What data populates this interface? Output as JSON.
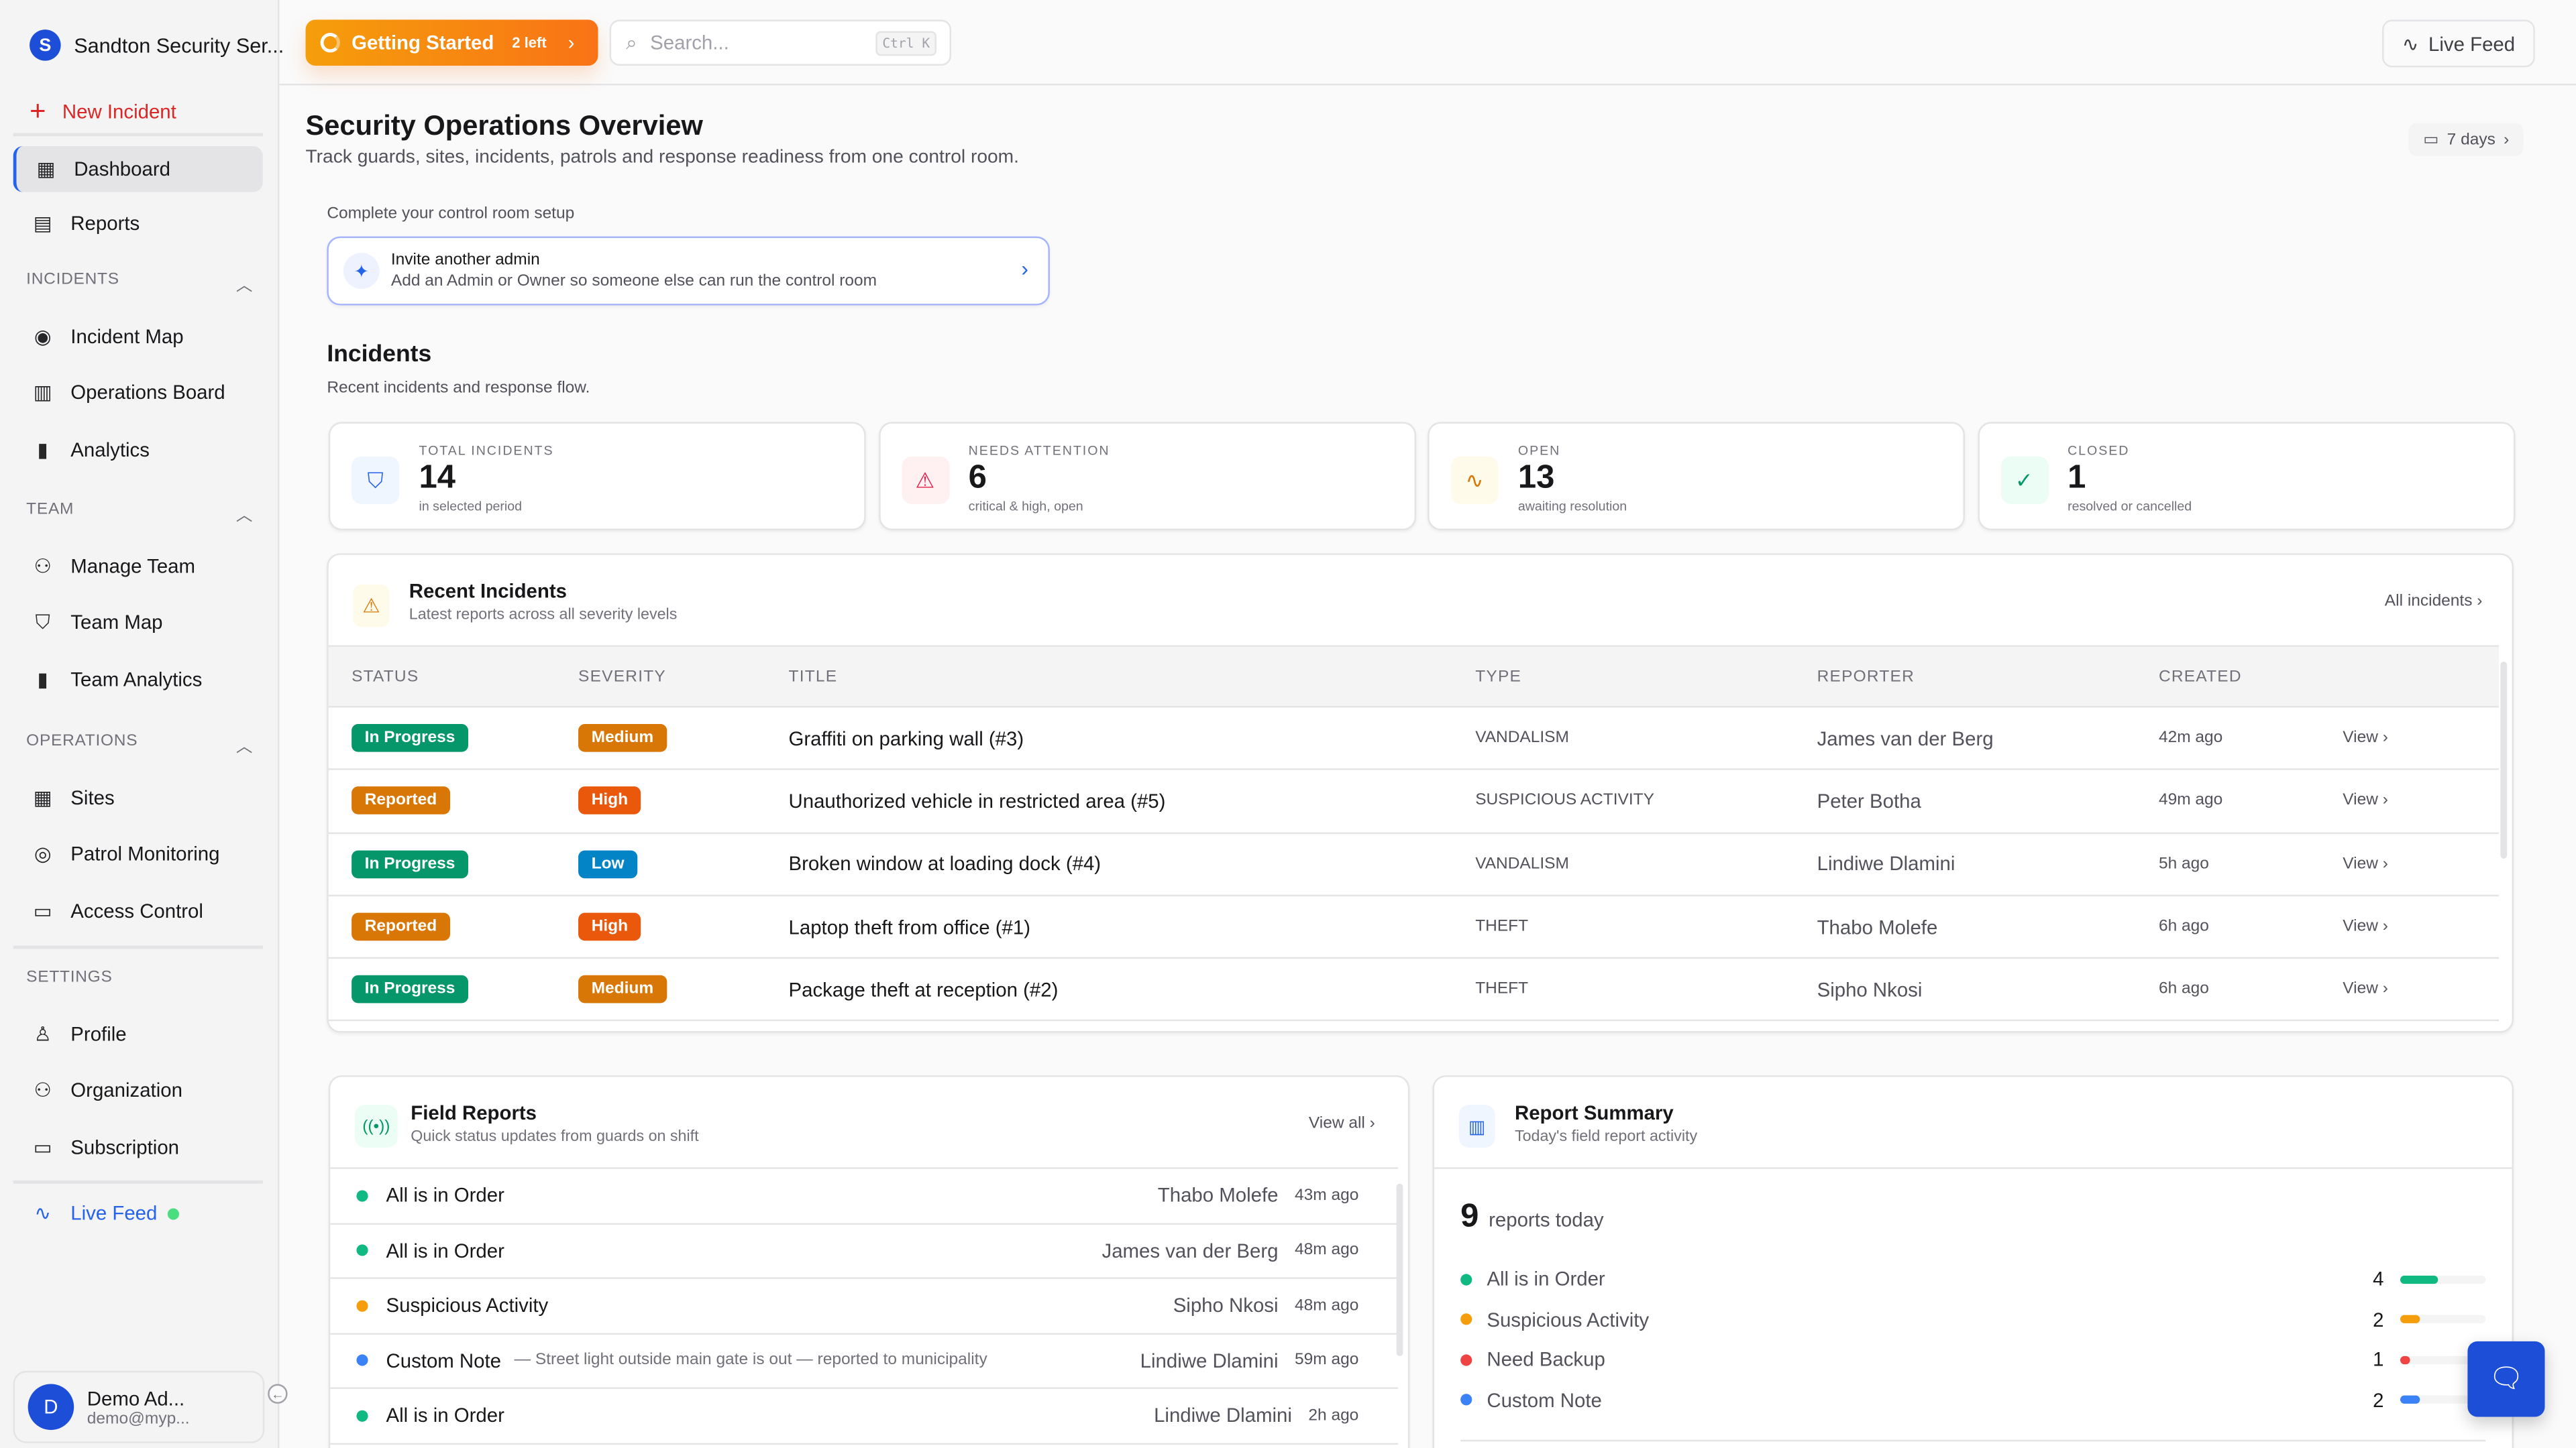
{
  "sidebar": {
    "org": "Sandton Security Ser...",
    "org_initial": "S",
    "new_incident": "New Incident",
    "top": [
      {
        "label": "Dashboard",
        "icon": "grid-icon",
        "active": true
      },
      {
        "label": "Reports",
        "icon": "file-chart-icon"
      }
    ],
    "sections": [
      {
        "title": "INCIDENTS",
        "items": [
          {
            "label": "Incident Map",
            "icon": "map-pin-icon"
          },
          {
            "label": "Operations Board",
            "icon": "clipboard-icon"
          },
          {
            "label": "Analytics",
            "icon": "bar-chart-icon"
          }
        ]
      },
      {
        "title": "TEAM",
        "items": [
          {
            "label": "Manage Team",
            "icon": "users-icon"
          },
          {
            "label": "Team Map",
            "icon": "shield-icon"
          },
          {
            "label": "Team Analytics",
            "icon": "bar-chart-icon"
          }
        ]
      },
      {
        "title": "OPERATIONS",
        "items": [
          {
            "label": "Sites",
            "icon": "building-icon"
          },
          {
            "label": "Patrol Monitoring",
            "icon": "eye-icon"
          },
          {
            "label": "Access Control",
            "icon": "id-card-icon"
          }
        ]
      },
      {
        "title": "SETTINGS",
        "items": [
          {
            "label": "Profile",
            "icon": "user-icon"
          },
          {
            "label": "Organization",
            "icon": "users-icon"
          },
          {
            "label": "Subscription",
            "icon": "credit-card-icon"
          }
        ]
      }
    ],
    "live_feed": "Live Feed",
    "user": {
      "initial": "D",
      "name": "Demo Ad...",
      "email": "demo@myp..."
    }
  },
  "topbar": {
    "getting_started": "Getting Started",
    "left": "2 left",
    "search_placeholder": "Search...",
    "shortcut": "Ctrl K",
    "live_feed": "Live Feed"
  },
  "page": {
    "title": "Security Operations Overview",
    "subtitle": "Track guards, sites, incidents, patrols and response readiness from one control room.",
    "range": "7 days"
  },
  "setup": {
    "heading": "Complete your control room setup",
    "title": "Invite another admin",
    "desc": "Add an Admin or Owner so someone else can run the control room"
  },
  "incidents": {
    "title": "Incidents",
    "subtitle": "Recent incidents and response flow."
  },
  "stats": [
    {
      "label": "TOTAL INCIDENTS",
      "value": "14",
      "sub": "in selected period",
      "icon": "shield-icon",
      "color": "#2563eb",
      "bg": "#eff6ff"
    },
    {
      "label": "NEEDS ATTENTION",
      "value": "6",
      "sub": "critical & high, open",
      "icon": "alert-triangle-icon",
      "color": "#e11d48",
      "bg": "#fff1f2"
    },
    {
      "label": "OPEN",
      "value": "13",
      "sub": "awaiting resolution",
      "icon": "activity-icon",
      "color": "#d97706",
      "bg": "#fffbeb"
    },
    {
      "label": "CLOSED",
      "value": "1",
      "sub": "resolved or cancelled",
      "icon": "check-circle-icon",
      "color": "#059669",
      "bg": "#ecfdf5"
    }
  ],
  "recent": {
    "title": "Recent Incidents",
    "subtitle": "Latest reports across all severity levels",
    "all_link": "All incidents",
    "columns": [
      "STATUS",
      "SEVERITY",
      "TITLE",
      "TYPE",
      "REPORTER",
      "CREATED"
    ],
    "rows": [
      {
        "status": "In Progress",
        "status_color": "#059669",
        "severity": "Medium",
        "severity_color": "#d97706",
        "title": "Graffiti on parking wall (#3)",
        "type": "VANDALISM",
        "reporter": "James van der Berg",
        "created": "42m ago",
        "action": "View"
      },
      {
        "status": "Reported",
        "status_color": "#d97706",
        "severity": "High",
        "severity_color": "#ea580c",
        "title": "Unauthorized vehicle in restricted area (#5)",
        "type": "SUSPICIOUS ACTIVITY",
        "reporter": "Peter Botha",
        "created": "49m ago",
        "action": "View"
      },
      {
        "status": "In Progress",
        "status_color": "#059669",
        "severity": "Low",
        "severity_color": "#0284c7",
        "title": "Broken window at loading dock (#4)",
        "type": "VANDALISM",
        "reporter": "Lindiwe Dlamini",
        "created": "5h ago",
        "action": "View"
      },
      {
        "status": "Reported",
        "status_color": "#d97706",
        "severity": "High",
        "severity_color": "#ea580c",
        "title": "Laptop theft from office (#1)",
        "type": "THEFT",
        "reporter": "Thabo Molefe",
        "created": "6h ago",
        "action": "View"
      },
      {
        "status": "In Progress",
        "status_color": "#059669",
        "severity": "Medium",
        "severity_color": "#d97706",
        "title": "Package theft at reception (#2)",
        "type": "THEFT",
        "reporter": "Sipho Nkosi",
        "created": "6h ago",
        "action": "View"
      }
    ]
  },
  "field_reports": {
    "title": "Field Reports",
    "subtitle": "Quick status updates from guards on shift",
    "view_all": "View all",
    "rows": [
      {
        "status": "All is in Order",
        "color": "#10b981",
        "note": "",
        "reporter": "Thabo Molefe",
        "time": "43m ago"
      },
      {
        "status": "All is in Order",
        "color": "#10b981",
        "note": "",
        "reporter": "James van der Berg",
        "time": "48m ago"
      },
      {
        "status": "Suspicious Activity",
        "color": "#f59e0b",
        "note": "",
        "reporter": "Sipho Nkosi",
        "time": "48m ago"
      },
      {
        "status": "Custom Note",
        "color": "#3b82f6",
        "note": "— Street light outside main gate is out — reported to municipality",
        "reporter": "Lindiwe Dlamini",
        "time": "59m ago"
      },
      {
        "status": "All is in Order",
        "color": "#10b981",
        "note": "",
        "reporter": "Lindiwe Dlamini",
        "time": "2h ago"
      }
    ]
  },
  "summary": {
    "title": "Report Summary",
    "subtitle": "Today's field report activity",
    "total": "9",
    "total_label": "reports today",
    "items": [
      {
        "label": "All is in Order",
        "count": 4,
        "color": "#10b981"
      },
      {
        "label": "Suspicious Activity",
        "count": 2,
        "color": "#f59e0b"
      },
      {
        "label": "Need Backup",
        "count": 1,
        "color": "#ef4444"
      },
      {
        "label": "Custom Note",
        "count": 2,
        "color": "#3b82f6"
      }
    ]
  }
}
